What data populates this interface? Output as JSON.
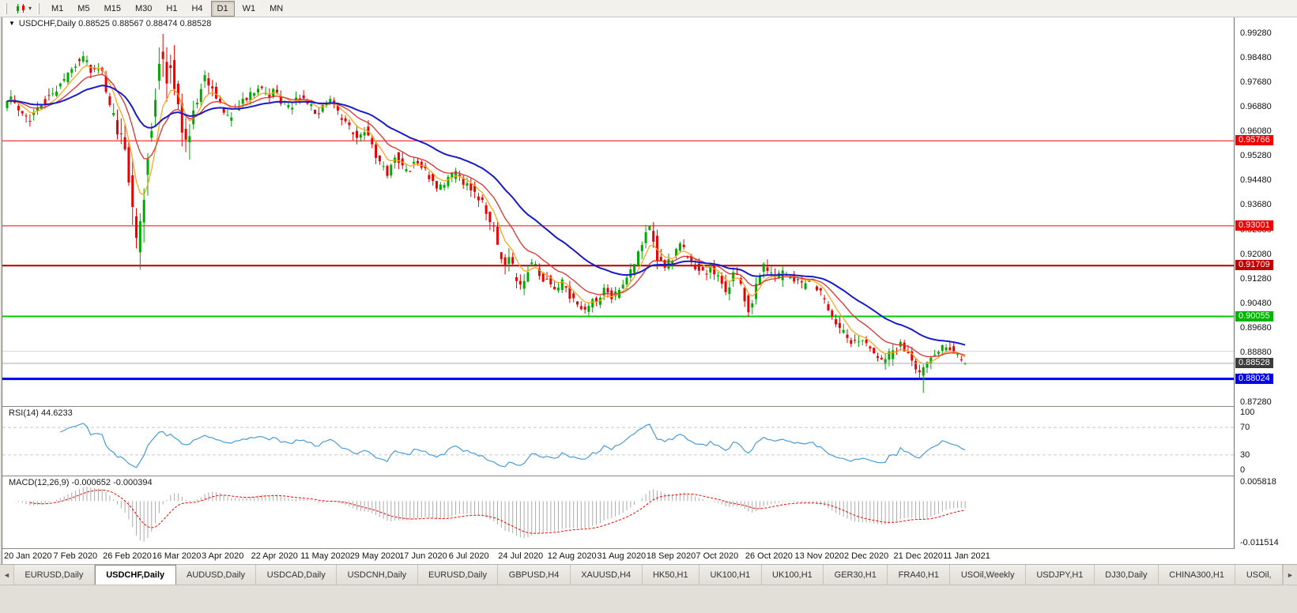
{
  "toolbar": {
    "timeframes": [
      {
        "label": "M1",
        "active": false
      },
      {
        "label": "M5",
        "active": false
      },
      {
        "label": "M15",
        "active": false
      },
      {
        "label": "M30",
        "active": false
      },
      {
        "label": "H1",
        "active": false
      },
      {
        "label": "H4",
        "active": false
      },
      {
        "label": "D1",
        "active": true
      },
      {
        "label": "W1",
        "active": false
      },
      {
        "label": "MN",
        "active": false
      }
    ]
  },
  "chart": {
    "title": "USDCHF,Daily",
    "ohlc": "0.88525 0.88567 0.88474 0.88528",
    "menu_triangle": "▼"
  },
  "rsi_panel": {
    "name": "RSI(14)",
    "value": "44.6233"
  },
  "macd_panel": {
    "name": "MACD(12,26,9)",
    "value": "-0.000652 -0.000394"
  },
  "tabbar": {
    "left_arrow": "◄",
    "right_arrow": "►",
    "items": [
      {
        "label": "EURUSD,Daily",
        "active": false
      },
      {
        "label": "USDCHF,Daily",
        "active": true
      },
      {
        "label": "AUDUSD,Daily",
        "active": false
      },
      {
        "label": "USDCAD,Daily",
        "active": false
      },
      {
        "label": "USDCNH,Daily",
        "active": false
      },
      {
        "label": "EURUSD,Daily",
        "active": false
      },
      {
        "label": "GBPUSD,H4",
        "active": false
      },
      {
        "label": "XAUUSD,H4",
        "active": false
      },
      {
        "label": "HK50,H1",
        "active": false
      },
      {
        "label": "UK100,H1",
        "active": false
      },
      {
        "label": "UK100,H1",
        "active": false
      },
      {
        "label": "GER30,H1",
        "active": false
      },
      {
        "label": "FRA40,H1",
        "active": false
      },
      {
        "label": "USOil,Weekly",
        "active": false
      },
      {
        "label": "USDJPY,H1",
        "active": false
      },
      {
        "label": "DJ30,Daily",
        "active": false
      },
      {
        "label": "CHINA300,H1",
        "active": false
      },
      {
        "label": "USOil,",
        "active": false
      }
    ]
  },
  "chart_data": {
    "type": "candlestick",
    "symbol": "USDCHF",
    "timeframe": "Daily",
    "current": {
      "open": 0.88525,
      "high": 0.88567,
      "low": 0.88474,
      "close": 0.88528
    },
    "candle_count": 253,
    "x_step": 4.81,
    "seed": 987654321,
    "base_vol": 0.0028,
    "colors": {
      "up": "#00A800",
      "down": "#EA0000"
    },
    "price_axis": {
      "min": 0.8714,
      "max": 0.9978,
      "ticks": [
        "0.99280",
        "0.98480",
        "0.97680",
        "0.96880",
        "0.96080",
        "0.95280",
        "0.94480",
        "0.93680",
        "0.92880",
        "0.92080",
        "0.91280",
        "0.90480",
        "0.89680",
        "0.88880",
        "0.88080",
        "0.87280"
      ]
    },
    "hlines": [
      {
        "price": 0.95766,
        "color": "#FF0000",
        "width": 1,
        "label": "0.95766",
        "tag_color": "#F00000"
      },
      {
        "price": 0.93001,
        "color": "#FF0000",
        "width": 1,
        "label": "0.93001",
        "tag_color": "#F00000"
      },
      {
        "price": 0.91709,
        "color": "#B00000",
        "width": 2,
        "label": "0.91709",
        "tag_color": "#C00000"
      },
      {
        "price": 0.90055,
        "color": "#00CC00",
        "width": 2,
        "label": "0.90055",
        "tag_color": "#00B400"
      },
      {
        "price": 0.8892,
        "color": "#D4D4D4",
        "width": 1,
        "label": null,
        "tag_color": null
      },
      {
        "price": 0.88024,
        "color": "#0000FF",
        "width": 3,
        "label": "0.88024",
        "tag_color": "#0000E8"
      }
    ],
    "bid": {
      "price": 0.88528,
      "label": "0.88528",
      "color": "#ABABAB",
      "tag_color": "#3C3C3C"
    },
    "ma": [
      {
        "period": 6,
        "color": "#FFA51E",
        "width": 1.3
      },
      {
        "period": 14,
        "color": "#E03030",
        "width": 1.3
      },
      {
        "period": 34,
        "color": "#1A1AC8",
        "width": 2
      }
    ],
    "price_path": [
      [
        0,
        0.9685
      ],
      [
        2,
        0.9715
      ],
      [
        4,
        0.968
      ],
      [
        6,
        0.9645
      ],
      [
        8,
        0.9665
      ],
      [
        10,
        0.97
      ],
      [
        13,
        0.9735
      ],
      [
        16,
        0.977
      ],
      [
        19,
        0.9835
      ],
      [
        21,
        0.9845
      ],
      [
        23,
        0.98
      ],
      [
        25,
        0.982
      ],
      [
        26,
        0.979
      ],
      [
        28,
        0.968
      ],
      [
        30,
        0.96
      ],
      [
        32,
        0.953
      ],
      [
        33,
        0.945
      ],
      [
        34,
        0.933
      ],
      [
        35,
        0.922
      ],
      [
        36,
        0.931
      ],
      [
        37,
        0.943
      ],
      [
        38,
        0.955
      ],
      [
        39,
        0.964
      ],
      [
        40,
        0.978
      ],
      [
        41,
        0.988
      ],
      [
        42,
        0.985
      ],
      [
        43,
        0.979
      ],
      [
        44,
        0.984
      ],
      [
        45,
        0.976
      ],
      [
        46,
        0.968
      ],
      [
        47,
        0.962
      ],
      [
        48,
        0.957
      ],
      [
        49,
        0.961
      ],
      [
        50,
        0.968
      ],
      [
        51,
        0.972
      ],
      [
        52,
        0.976
      ],
      [
        53,
        0.979
      ],
      [
        54,
        0.977
      ],
      [
        55,
        0.974
      ],
      [
        57,
        0.969
      ],
      [
        59,
        0.9655
      ],
      [
        61,
        0.968
      ],
      [
        63,
        0.971
      ],
      [
        65,
        0.973
      ],
      [
        67,
        0.9755
      ],
      [
        69,
        0.972
      ],
      [
        71,
        0.974
      ],
      [
        73,
        0.97
      ],
      [
        75,
        0.968
      ],
      [
        77,
        0.971
      ],
      [
        78,
        0.972
      ],
      [
        80,
        0.97
      ],
      [
        82,
        0.9665
      ],
      [
        84,
        0.969
      ],
      [
        86,
        0.971
      ],
      [
        88,
        0.966
      ],
      [
        90,
        0.9625
      ],
      [
        91,
        0.9615
      ],
      [
        93,
        0.958
      ],
      [
        95,
        0.962
      ],
      [
        97,
        0.956
      ],
      [
        99,
        0.95
      ],
      [
        101,
        0.947
      ],
      [
        103,
        0.953
      ],
      [
        104,
        0.951
      ],
      [
        106,
        0.947
      ],
      [
        108,
        0.951
      ],
      [
        110,
        0.949
      ],
      [
        112,
        0.946
      ],
      [
        114,
        0.942
      ],
      [
        116,
        0.944
      ],
      [
        117,
        0.9455
      ],
      [
        119,
        0.947
      ],
      [
        121,
        0.944
      ],
      [
        123,
        0.942
      ],
      [
        125,
        0.939
      ],
      [
        127,
        0.935
      ],
      [
        129,
        0.928
      ],
      [
        130,
        0.923
      ],
      [
        131,
        0.919
      ],
      [
        132,
        0.916
      ],
      [
        133,
        0.9185
      ],
      [
        134,
        0.915
      ],
      [
        135,
        0.911
      ],
      [
        136,
        0.909
      ],
      [
        137,
        0.913
      ],
      [
        138,
        0.916
      ],
      [
        139,
        0.9185
      ],
      [
        140,
        0.916
      ],
      [
        142,
        0.912
      ],
      [
        143,
        0.9135
      ],
      [
        145,
        0.909
      ],
      [
        147,
        0.9115
      ],
      [
        149,
        0.907
      ],
      [
        151,
        0.904
      ],
      [
        153,
        0.9015
      ],
      [
        155,
        0.907
      ],
      [
        156,
        0.905
      ],
      [
        158,
        0.909
      ],
      [
        160,
        0.9065
      ],
      [
        162,
        0.909
      ],
      [
        164,
        0.913
      ],
      [
        166,
        0.918
      ],
      [
        168,
        0.924
      ],
      [
        169,
        0.928
      ],
      [
        170,
        0.9295
      ],
      [
        171,
        0.925
      ],
      [
        172,
        0.919
      ],
      [
        174,
        0.916
      ],
      [
        176,
        0.92
      ],
      [
        178,
        0.9235
      ],
      [
        180,
        0.919
      ],
      [
        182,
        0.9165
      ],
      [
        184,
        0.914
      ],
      [
        186,
        0.9165
      ],
      [
        188,
        0.913
      ],
      [
        190,
        0.909
      ],
      [
        192,
        0.914
      ],
      [
        194,
        0.9105
      ],
      [
        195,
        0.906
      ],
      [
        196,
        0.9025
      ],
      [
        197,
        0.906
      ],
      [
        198,
        0.911
      ],
      [
        199,
        0.916
      ],
      [
        200,
        0.918
      ],
      [
        201,
        0.914
      ],
      [
        203,
        0.912
      ],
      [
        205,
        0.915
      ],
      [
        207,
        0.913
      ],
      [
        208,
        0.912
      ],
      [
        210,
        0.9105
      ],
      [
        212,
        0.913
      ],
      [
        214,
        0.9095
      ],
      [
        216,
        0.905
      ],
      [
        218,
        0.9005
      ],
      [
        220,
        0.8965
      ],
      [
        221,
        0.8945
      ],
      [
        223,
        0.892
      ],
      [
        225,
        0.8935
      ],
      [
        227,
        0.8905
      ],
      [
        229,
        0.888
      ],
      [
        231,
        0.886
      ],
      [
        233,
        0.888
      ],
      [
        234,
        0.8895
      ],
      [
        236,
        0.8915
      ],
      [
        238,
        0.888
      ],
      [
        240,
        0.8835
      ],
      [
        241,
        0.8805
      ],
      [
        242,
        0.884
      ],
      [
        244,
        0.8875
      ],
      [
        246,
        0.89
      ],
      [
        248,
        0.891
      ],
      [
        250,
        0.889
      ],
      [
        252,
        0.8853
      ]
    ],
    "volatility": [
      [
        0,
        1.0
      ],
      [
        26,
        1.0
      ],
      [
        29,
        2.2
      ],
      [
        33,
        2.8
      ],
      [
        36,
        3.2
      ],
      [
        42,
        3.0
      ],
      [
        46,
        2.2
      ],
      [
        50,
        1.5
      ],
      [
        55,
        1.1
      ],
      [
        65,
        0.9
      ],
      [
        80,
        0.85
      ],
      [
        90,
        1.0
      ],
      [
        97,
        1.1
      ],
      [
        108,
        0.85
      ],
      [
        120,
        0.85
      ],
      [
        126,
        1.2
      ],
      [
        132,
        1.5
      ],
      [
        140,
        1.1
      ],
      [
        150,
        0.9
      ],
      [
        162,
        0.9
      ],
      [
        167,
        1.2
      ],
      [
        172,
        1.3
      ],
      [
        180,
        1.0
      ],
      [
        195,
        1.1
      ],
      [
        200,
        1.2
      ],
      [
        210,
        0.85
      ],
      [
        218,
        1.0
      ],
      [
        228,
        0.95
      ],
      [
        240,
        1.1
      ],
      [
        246,
        0.8
      ],
      [
        252,
        0.7
      ]
    ],
    "spikes": [
      {
        "i": 35,
        "l": 0.9158
      },
      {
        "i": 41,
        "h": 0.992
      },
      {
        "i": 48,
        "l": 0.9515
      },
      {
        "i": 153,
        "l": 0.9008
      },
      {
        "i": 170,
        "h": 0.9312
      },
      {
        "i": 196,
        "l": 0.9012
      },
      {
        "i": 241,
        "l": 0.8757
      }
    ],
    "rsi": {
      "period": 14,
      "color": "#4A9CD8",
      "level_lines": [
        70,
        30
      ],
      "axis_labels": [
        {
          "value": 100,
          "text": "100"
        },
        {
          "value": 70,
          "text": "70"
        },
        {
          "value": 30,
          "text": "30"
        },
        {
          "value": 0,
          "text": "0"
        }
      ]
    },
    "macd": {
      "fast": 12,
      "slow": 26,
      "signal": 9,
      "hist_color": "#ABABAB",
      "signal_color": "#FF0000",
      "scale_max": 0.0064,
      "scale_min": -0.0122,
      "axis_labels": [
        {
          "value": 0.005818,
          "text": "0.005818"
        },
        {
          "value": -0.011514,
          "text": "-0.011514"
        }
      ]
    },
    "x_labels": [
      {
        "i": 0,
        "label": "20 Jan 2020"
      },
      {
        "i": 13,
        "label": "7 Feb 2020"
      },
      {
        "i": 26,
        "label": "26 Feb 2020"
      },
      {
        "i": 39,
        "label": "16 Mar 2020"
      },
      {
        "i": 52,
        "label": "3 Apr 2020"
      },
      {
        "i": 65,
        "label": "22 Apr 2020"
      },
      {
        "i": 78,
        "label": "11 May 2020"
      },
      {
        "i": 91,
        "label": "29 May 2020"
      },
      {
        "i": 104,
        "label": "17 Jun 2020"
      },
      {
        "i": 117,
        "label": "6 Jul 2020"
      },
      {
        "i": 130,
        "label": "24 Jul 2020"
      },
      {
        "i": 143,
        "label": "12 Aug 2020"
      },
      {
        "i": 156,
        "label": "31 Aug 2020"
      },
      {
        "i": 169,
        "label": "18 Sep 2020"
      },
      {
        "i": 182,
        "label": "7 Oct 2020"
      },
      {
        "i": 195,
        "label": "26 Oct 2020"
      },
      {
        "i": 208,
        "label": "13 Nov 2020"
      },
      {
        "i": 221,
        "label": "2 Dec 2020"
      },
      {
        "i": 234,
        "label": "21 Dec 2020"
      },
      {
        "i": 247,
        "label": "11 Jan 2021"
      }
    ]
  }
}
